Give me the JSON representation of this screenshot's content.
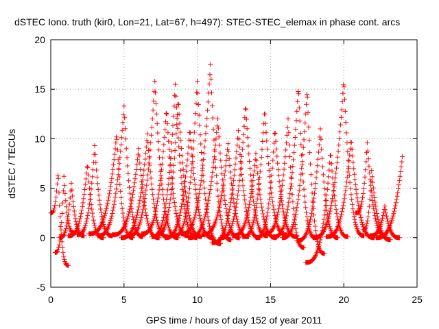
{
  "chart_data": {
    "type": "scatter",
    "title": "dSTEC Iono. truth (kir0, Lon=21, Lat=67, h=497): STEC-STEC_elemax in phase cont. arcs",
    "xlabel": "GPS time / hours of day 152 of year 2011",
    "ylabel": "dSTEC  / TECUs",
    "xlim": [
      0,
      25
    ],
    "ylim": [
      -5,
      20
    ],
    "xticks": [
      "0",
      "5",
      "10",
      "15",
      "20",
      "25"
    ],
    "yticks": [
      "-5",
      "0",
      "5",
      "10",
      "15",
      "20"
    ],
    "grid": true,
    "marker": "+",
    "color": "#ff0000",
    "arcs": [
      {
        "start": 0.0,
        "peak": 0.5,
        "end": 1.2,
        "ypeak": 6.8,
        "ystart": 2.5,
        "yend": -2.8
      },
      {
        "start": 0.3,
        "peak": 0.9,
        "end": 1.6,
        "ypeak": 6.2,
        "ystart": -1.5,
        "yend": 0.5
      },
      {
        "start": 0.6,
        "peak": 1.4,
        "end": 2.3,
        "ypeak": 5.5,
        "ystart": 0.0,
        "yend": 0.2
      },
      {
        "start": 1.2,
        "peak": 2.5,
        "end": 3.6,
        "ypeak": 7.5,
        "ystart": 0.2,
        "yend": 0.0
      },
      {
        "start": 1.8,
        "peak": 3.0,
        "end": 4.2,
        "ypeak": 9.3,
        "ystart": 0.3,
        "yend": 0.2
      },
      {
        "start": 2.6,
        "peak": 4.5,
        "end": 5.6,
        "ypeak": 10.5,
        "ystart": 0.4,
        "yend": 0.0
      },
      {
        "start": 3.2,
        "peak": 5.0,
        "end": 6.3,
        "ypeak": 13.3,
        "ystart": 0.2,
        "yend": 0.1
      },
      {
        "start": 4.2,
        "peak": 6.0,
        "end": 7.4,
        "ypeak": 9.0,
        "ystart": 0.3,
        "yend": 0.0
      },
      {
        "start": 4.8,
        "peak": 6.6,
        "end": 8.0,
        "ypeak": 10.5,
        "ystart": 0.0,
        "yend": 0.1
      },
      {
        "start": 5.3,
        "peak": 7.1,
        "end": 8.7,
        "ypeak": 15.8,
        "ystart": 0.2,
        "yend": 0.0
      },
      {
        "start": 6.2,
        "peak": 7.9,
        "end": 9.4,
        "ypeak": 13.0,
        "ystart": 0.4,
        "yend": 0.2
      },
      {
        "start": 6.9,
        "peak": 8.5,
        "end": 10.0,
        "ypeak": 15.5,
        "ystart": 0.1,
        "yend": 0.0
      },
      {
        "start": 7.2,
        "peak": 8.7,
        "end": 10.3,
        "ypeak": 14.0,
        "ystart": 0.3,
        "yend": 0.1
      },
      {
        "start": 7.8,
        "peak": 9.5,
        "end": 11.1,
        "ypeak": 11.0,
        "ystart": 0.0,
        "yend": 0.0
      },
      {
        "start": 8.4,
        "peak": 10.0,
        "end": 11.6,
        "ypeak": 15.8,
        "ystart": 0.2,
        "yend": -0.6
      },
      {
        "start": 8.9,
        "peak": 10.9,
        "end": 12.3,
        "ypeak": 17.5,
        "ystart": 0.4,
        "yend": -0.2
      },
      {
        "start": 9.4,
        "peak": 11.4,
        "end": 12.9,
        "ypeak": 12.0,
        "ystart": 0.0,
        "yend": 0.0
      },
      {
        "start": 10.3,
        "peak": 12.1,
        "end": 13.5,
        "ypeak": 9.5,
        "ystart": 0.3,
        "yend": 0.1
      },
      {
        "start": 11.0,
        "peak": 12.8,
        "end": 14.3,
        "ypeak": 10.8,
        "ystart": -0.5,
        "yend": 0.0
      },
      {
        "start": 11.6,
        "peak": 13.3,
        "end": 14.8,
        "ypeak": 13.5,
        "ystart": 0.0,
        "yend": 0.2
      },
      {
        "start": 12.4,
        "peak": 14.0,
        "end": 15.4,
        "ypeak": 8.5,
        "ystart": 0.2,
        "yend": 0.0
      },
      {
        "start": 13.1,
        "peak": 14.6,
        "end": 16.1,
        "ypeak": 13.0,
        "ystart": 0.1,
        "yend": 0.3
      },
      {
        "start": 14.0,
        "peak": 15.3,
        "end": 16.8,
        "ypeak": 11.0,
        "ystart": 0.0,
        "yend": 0.1
      },
      {
        "start": 14.6,
        "peak": 16.2,
        "end": 17.3,
        "ypeak": 12.0,
        "ystart": 0.4,
        "yend": -1.0
      },
      {
        "start": 15.2,
        "peak": 16.9,
        "end": 18.1,
        "ypeak": 15.3,
        "ystart": 0.1,
        "yend": 0.0
      },
      {
        "start": 15.8,
        "peak": 17.5,
        "end": 18.7,
        "ypeak": 15.0,
        "ystart": 0.0,
        "yend": -1.6
      },
      {
        "start": 16.8,
        "peak": 18.4,
        "end": 19.6,
        "ypeak": 11.0,
        "ystart": -0.3,
        "yend": 0.0
      },
      {
        "start": 17.4,
        "peak": 19.1,
        "end": 20.3,
        "ypeak": 8.7,
        "ystart": -2.5,
        "yend": 0.1
      },
      {
        "start": 17.9,
        "peak": 20.0,
        "end": 21.4,
        "ypeak": 15.9,
        "ystart": 0.0,
        "yend": 0.2
      },
      {
        "start": 18.8,
        "peak": 20.5,
        "end": 22.1,
        "ypeak": 10.0,
        "ystart": 0.1,
        "yend": 0.0
      },
      {
        "start": 20.8,
        "peak": 21.6,
        "end": 22.9,
        "ypeak": 9.6,
        "ystart": 2.5,
        "yend": 0.2
      },
      {
        "start": 21.3,
        "peak": 21.9,
        "end": 23.2,
        "ypeak": 6.8,
        "ystart": 0.8,
        "yend": -0.2
      },
      {
        "start": 21.8,
        "peak": 22.8,
        "end": 23.8,
        "ypeak": 3.2,
        "ystart": 0.2,
        "yend": 0.0
      },
      {
        "start": 22.2,
        "peak": 24.0,
        "end": 24.0,
        "ypeak": 8.2,
        "ystart": 0.0,
        "yend": 8.2
      }
    ]
  }
}
